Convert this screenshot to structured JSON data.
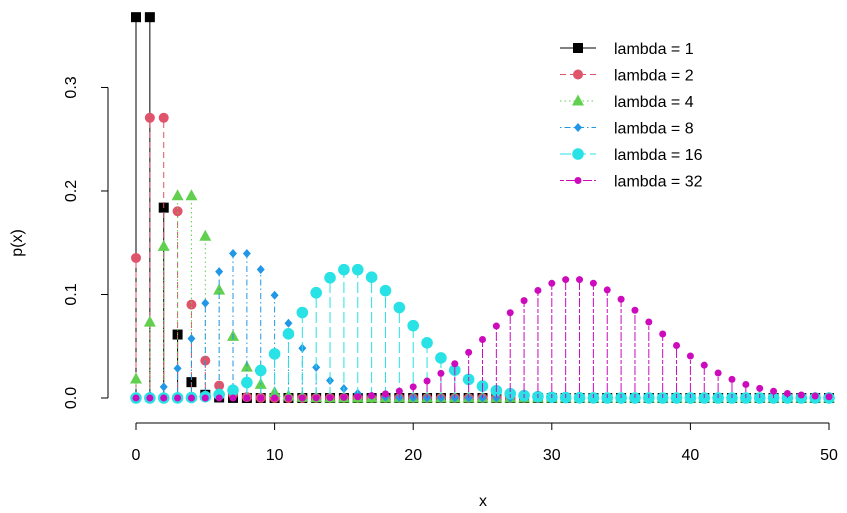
{
  "chart_data": {
    "type": "scatter",
    "title": "",
    "xlabel": "x",
    "ylabel": "p(x)",
    "xlim": [
      0,
      50
    ],
    "ylim": [
      0,
      0.37
    ],
    "xticks": [
      0,
      10,
      20,
      30,
      40,
      50
    ],
    "xtick_labels": [
      "0",
      "10",
      "20",
      "30",
      "40",
      "50"
    ],
    "yticks": [
      0.0,
      0.1,
      0.2,
      0.3
    ],
    "ytick_labels": [
      "0.0",
      "0.1",
      "0.2",
      "0.3"
    ],
    "grid": false,
    "legend_position": "top-right",
    "display": "points with vertical drop lines from 0",
    "x": [
      0,
      1,
      2,
      3,
      4,
      5,
      6,
      7,
      8,
      9,
      10,
      11,
      12,
      13,
      14,
      15,
      16,
      17,
      18,
      19,
      20,
      21,
      22,
      23,
      24,
      25,
      26,
      27,
      28,
      29,
      30,
      31,
      32,
      33,
      34,
      35,
      36,
      37,
      38,
      39,
      40,
      41,
      42,
      43,
      44,
      45,
      46,
      47,
      48,
      49,
      50
    ],
    "series": [
      {
        "name": "lambda = 1",
        "color": "#000000",
        "marker": "square",
        "line_style": "solid",
        "values": [
          0.3679,
          0.3679,
          0.1839,
          0.0613,
          0.0153,
          0.0031,
          0.0005,
          0.0001,
          0,
          0,
          0,
          0,
          0,
          0,
          0,
          0,
          0,
          0,
          0,
          0,
          0,
          0,
          0,
          0,
          0,
          0,
          0,
          0,
          0,
          0,
          0,
          0,
          0,
          0,
          0,
          0,
          0,
          0,
          0,
          0,
          0,
          0,
          0,
          0,
          0,
          0,
          0,
          0,
          0,
          0,
          0
        ]
      },
      {
        "name": "lambda = 2",
        "color": "#DF536B",
        "marker": "circle",
        "line_style": "dashed",
        "values": [
          0.1353,
          0.2707,
          0.2707,
          0.1804,
          0.0902,
          0.0361,
          0.012,
          0.0034,
          0.0009,
          0.0002,
          0,
          0,
          0,
          0,
          0,
          0,
          0,
          0,
          0,
          0,
          0,
          0,
          0,
          0,
          0,
          0,
          0,
          0,
          0,
          0,
          0,
          0,
          0,
          0,
          0,
          0,
          0,
          0,
          0,
          0,
          0,
          0,
          0,
          0,
          0,
          0,
          0,
          0,
          0,
          0,
          0
        ]
      },
      {
        "name": "lambda = 4",
        "color": "#61D04F",
        "marker": "triangle",
        "line_style": "dotted",
        "values": [
          0.0183,
          0.0733,
          0.1465,
          0.1954,
          0.1954,
          0.1563,
          0.1042,
          0.0595,
          0.0298,
          0.0132,
          0.0053,
          0.0019,
          0.0006,
          0.0002,
          0,
          0,
          0,
          0,
          0,
          0,
          0,
          0,
          0,
          0,
          0,
          0,
          0,
          0,
          0,
          0,
          0,
          0,
          0,
          0,
          0,
          0,
          0,
          0,
          0,
          0,
          0,
          0,
          0,
          0,
          0,
          0,
          0,
          0,
          0,
          0,
          0
        ]
      },
      {
        "name": "lambda = 8",
        "color": "#2297E6",
        "marker": "diamond",
        "line_style": "dotdash",
        "values": [
          0.0003,
          0.0027,
          0.0107,
          0.0286,
          0.0573,
          0.0916,
          0.1221,
          0.1396,
          0.1396,
          0.1241,
          0.0993,
          0.0722,
          0.0481,
          0.0296,
          0.0169,
          0.009,
          0.0045,
          0.0021,
          0.0009,
          0.0004,
          0.0002,
          0,
          0,
          0,
          0,
          0,
          0,
          0,
          0,
          0,
          0,
          0,
          0,
          0,
          0,
          0,
          0,
          0,
          0,
          0,
          0,
          0,
          0,
          0,
          0,
          0,
          0,
          0,
          0,
          0,
          0
        ]
      },
      {
        "name": "lambda = 16",
        "color": "#28E2E5",
        "marker": "big-circle",
        "line_style": "longdash",
        "values": [
          0,
          0,
          0,
          0.0001,
          0.0004,
          0.0013,
          0.0033,
          0.0075,
          0.015,
          0.0266,
          0.0426,
          0.062,
          0.0826,
          0.1017,
          0.1162,
          0.124,
          0.124,
          0.1167,
          0.1037,
          0.0874,
          0.0699,
          0.0533,
          0.0387,
          0.0269,
          0.018,
          0.0115,
          0.0071,
          0.0042,
          0.0024,
          0.0013,
          0.0007,
          0.0004,
          0.0002,
          0.0001,
          0,
          0,
          0,
          0,
          0,
          0,
          0,
          0,
          0,
          0,
          0,
          0,
          0,
          0,
          0,
          0,
          0
        ]
      },
      {
        "name": "lambda = 32",
        "color": "#CD0BBC",
        "marker": "small-circle",
        "line_style": "twodash",
        "values": [
          0,
          0,
          0,
          0,
          0,
          0,
          0,
          0,
          0,
          0,
          0,
          0,
          0,
          0.0001,
          0.0003,
          0.0006,
          0.0012,
          0.0023,
          0.004,
          0.0067,
          0.0108,
          0.0164,
          0.0238,
          0.0331,
          0.0441,
          0.0565,
          0.0695,
          0.0824,
          0.0941,
          0.1039,
          0.1108,
          0.1144,
          0.1144,
          0.1109,
          0.1044,
          0.0954,
          0.0848,
          0.0734,
          0.0618,
          0.0507,
          0.0406,
          0.0317,
          0.0241,
          0.018,
          0.0131,
          0.0093,
          0.0065,
          0.0044,
          0.0029,
          0.0019,
          0.0012
        ]
      }
    ]
  }
}
